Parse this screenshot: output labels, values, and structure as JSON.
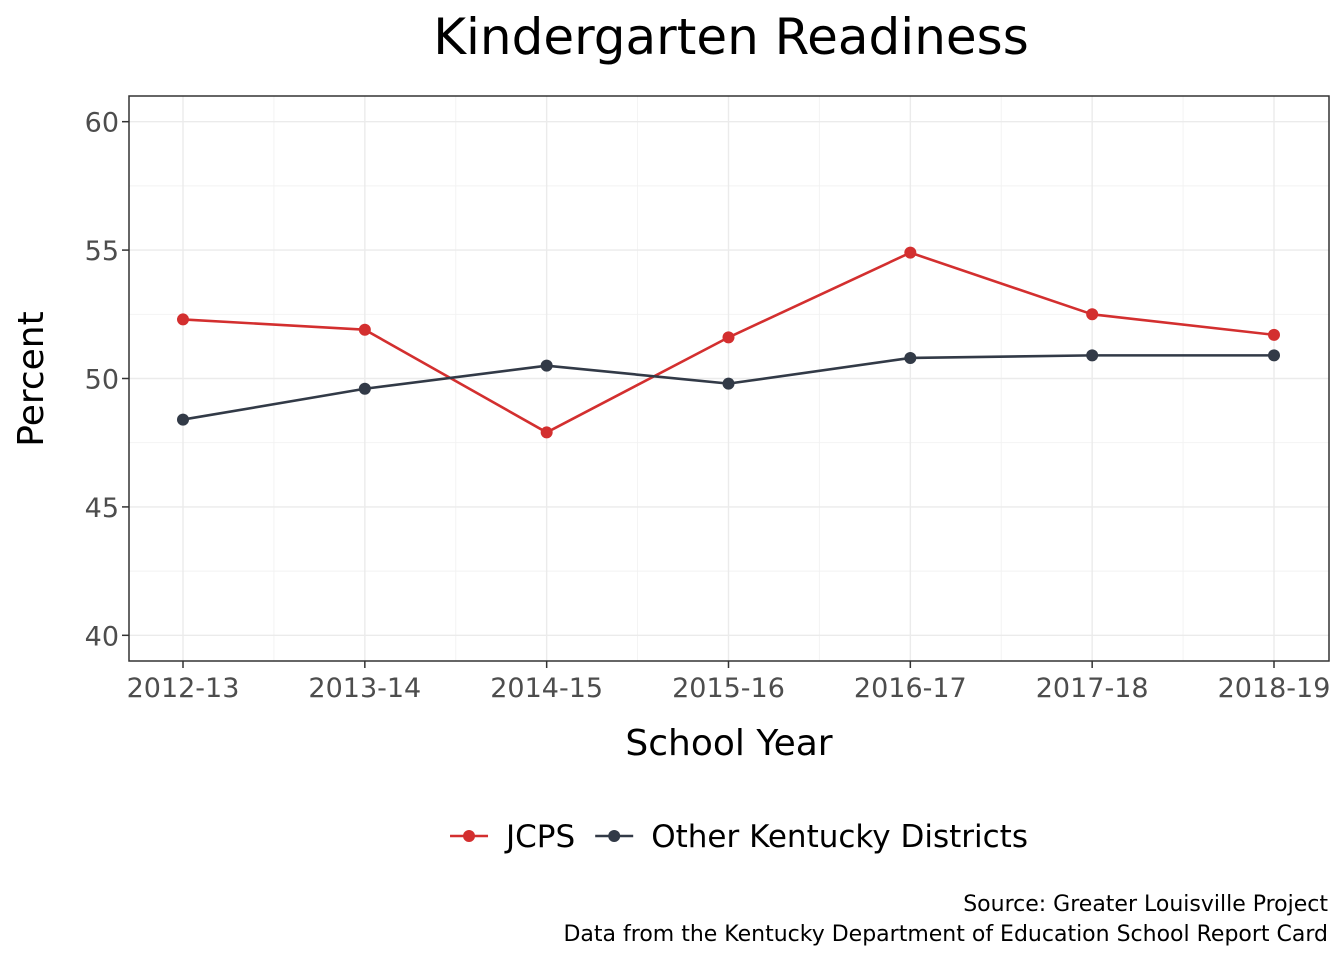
{
  "chart_data": {
    "type": "line",
    "title": "Kindergarten Readiness",
    "xlabel": "School Year",
    "ylabel": "Percent",
    "categories": [
      "2012-13",
      "2013-14",
      "2014-15",
      "2015-16",
      "2016-17",
      "2017-18",
      "2018-19"
    ],
    "y_ticks": [
      40,
      45,
      50,
      55,
      60
    ],
    "ylim": [
      39,
      61
    ],
    "grid": true,
    "legend_position": "bottom",
    "series": [
      {
        "name": "JCPS",
        "color": "#d32f2f",
        "values": [
          52.3,
          51.9,
          47.9,
          51.6,
          54.9,
          52.5,
          51.7
        ]
      },
      {
        "name": "Other Kentucky Districts",
        "color": "#323a47",
        "values": [
          48.4,
          49.6,
          50.5,
          49.8,
          50.8,
          50.9,
          50.9
        ]
      }
    ],
    "caption_lines": [
      "Source: Greater Louisville Project",
      "Data from the Kentucky Department of Education School Report Card"
    ]
  }
}
